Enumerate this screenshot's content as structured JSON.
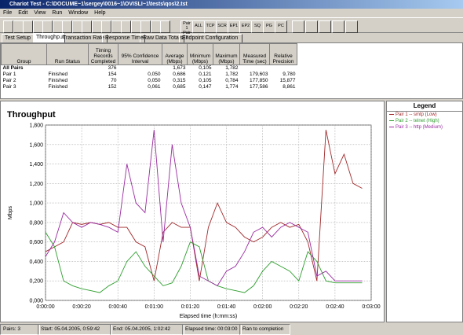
{
  "window": {
    "title": "Chariot Test - C:\\DOCUME~1\\sergey\\0016~1\\OVISLI~1\\tests\\qos\\2.tst"
  },
  "menu": [
    "File",
    "Edit",
    "View",
    "Run",
    "Window",
    "Help"
  ],
  "toolbar": [
    "Pair 1 Pair 2",
    "ALL",
    "TCP",
    "SCR",
    "EP1",
    "EP2",
    "SQ",
    "PG",
    "PC"
  ],
  "tabs": [
    "Test Setup",
    "Throughput",
    "Transaction Rate",
    "Response Time",
    "Raw Data Totals",
    "Endpoint Configuration"
  ],
  "table": {
    "headers": [
      "Group",
      "Run Status",
      "Timing Records Completed",
      "95% Confidence Interval",
      "Average (Mbps)",
      "Minimum (Mbps)",
      "Maximum (Mbps)",
      "Measured Time (sec)",
      "Relative Precision"
    ],
    "rows": [
      [
        "All Pairs",
        "",
        "376",
        "",
        "1,673",
        "0,105",
        "1,782",
        "",
        ""
      ],
      [
        "Pair 1",
        "Finished",
        "154",
        "0,050",
        "0,686",
        "0,121",
        "1,782",
        "179,603",
        "9,780"
      ],
      [
        "Pair 2",
        "Finished",
        "70",
        "0,050",
        "0,315",
        "0,105",
        "0,784",
        "177,850",
        "15,877"
      ],
      [
        "Pair 3",
        "Finished",
        "152",
        "0,061",
        "0,685",
        "0,147",
        "1,774",
        "177,586",
        "8,861"
      ]
    ]
  },
  "chart_data": {
    "type": "line",
    "title": "Throughput",
    "x_label": "Elapsed time (h:mm:ss)",
    "y_label": "Mbps",
    "legend_title": "Legend",
    "grid": true,
    "xlim": [
      0,
      180
    ],
    "ylim": [
      0,
      1.8
    ],
    "xticks": [
      {
        "value": 0,
        "label": "0:00:00"
      },
      {
        "value": 20,
        "label": "0:00:20"
      },
      {
        "value": 40,
        "label": "0:00:40"
      },
      {
        "value": 60,
        "label": "0:01:00"
      },
      {
        "value": 80,
        "label": "0:01:20"
      },
      {
        "value": 100,
        "label": "0:01:40"
      },
      {
        "value": 120,
        "label": "0:02:00"
      },
      {
        "value": 140,
        "label": "0:02:20"
      },
      {
        "value": 160,
        "label": "0:02:40"
      },
      {
        "value": 180,
        "label": "0:03:00"
      }
    ],
    "yticks": [
      {
        "value": 0,
        "label": "0,000"
      },
      {
        "value": 0.2,
        "label": "0,200"
      },
      {
        "value": 0.4,
        "label": "0,400"
      },
      {
        "value": 0.6,
        "label": "0,600"
      },
      {
        "value": 0.8,
        "label": "0,800"
      },
      {
        "value": 1.0,
        "label": "1,000"
      },
      {
        "value": 1.2,
        "label": "1,200"
      },
      {
        "value": 1.4,
        "label": "1,400"
      },
      {
        "value": 1.6,
        "label": "1,600"
      },
      {
        "value": 1.8,
        "label": "1,800"
      }
    ],
    "x": [
      0,
      5,
      10,
      15,
      20,
      25,
      30,
      35,
      40,
      45,
      50,
      55,
      60,
      65,
      70,
      75,
      80,
      85,
      90,
      95,
      100,
      105,
      110,
      115,
      120,
      125,
      130,
      135,
      140,
      145,
      150,
      155,
      160,
      165,
      170,
      175
    ],
    "series": [
      {
        "name": "Pair 1 -- smtp (Low)",
        "color": "#a0282a",
        "values": [
          0.5,
          0.55,
          0.6,
          0.8,
          0.78,
          0.8,
          0.78,
          0.8,
          0.75,
          0.75,
          0.6,
          0.55,
          0.2,
          0.7,
          0.8,
          0.75,
          0.75,
          0.2,
          0.75,
          1.0,
          0.8,
          0.75,
          0.65,
          0.6,
          0.65,
          0.75,
          0.8,
          0.75,
          0.78,
          0.6,
          0.2,
          1.75,
          1.3,
          1.5,
          1.2,
          1.15
        ]
      },
      {
        "name": "Pair 2 -- telnet (High)",
        "color": "#2e9e2e",
        "values": [
          0.7,
          0.55,
          0.2,
          0.15,
          0.12,
          0.1,
          0.08,
          0.15,
          0.2,
          0.4,
          0.5,
          0.35,
          0.25,
          0.15,
          0.18,
          0.35,
          0.6,
          0.55,
          0.2,
          0.15,
          0.12,
          0.1,
          0.08,
          0.15,
          0.3,
          0.4,
          0.35,
          0.3,
          0.2,
          0.5,
          0.4,
          0.2,
          0.18,
          0.18,
          0.18,
          0.18
        ]
      },
      {
        "name": "Pair 3 -- http (Medium)",
        "color": "#9a2aa0",
        "values": [
          0.45,
          0.6,
          0.9,
          0.8,
          0.75,
          0.8,
          0.78,
          0.75,
          0.7,
          1.4,
          1.0,
          0.9,
          1.75,
          0.6,
          1.6,
          1.0,
          0.75,
          0.25,
          0.2,
          0.15,
          0.3,
          0.35,
          0.5,
          0.7,
          0.75,
          0.65,
          0.75,
          0.8,
          0.75,
          0.7,
          0.25,
          0.3,
          0.2,
          0.2,
          0.2,
          0.2
        ]
      }
    ]
  },
  "status": [
    "Pairs: 3",
    "Start: 05.04.2005, 0:59:42",
    "End: 05.04.2005, 1:02:42",
    "Elapsed time: 00:03:00",
    "Ran to completion"
  ]
}
